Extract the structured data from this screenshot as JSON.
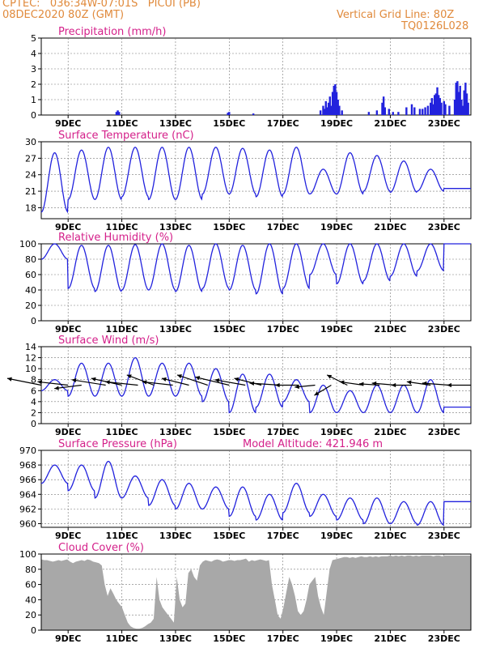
{
  "header": {
    "station_line": "CPTEC:   036:34W-07:01S   PICUI (PB)",
    "date_line": "08DEC2020 80Z (GMT)",
    "grid_line": "Vertical Grid Line: 80Z",
    "code_line": "TQ0126L028"
  },
  "colors": {
    "header_text": "#e08a3c",
    "panel_title": "#d4208a",
    "series": "#2222dd",
    "cloud_fill": "#a8a8a8",
    "grid": "#777777"
  },
  "chart_data": [
    {
      "type": "bar",
      "title": "Precipitation (mm/h)",
      "x_labels": [
        "9DEC",
        "11DEC",
        "13DEC",
        "15DEC",
        "17DEC",
        "19DEC",
        "21DEC",
        "23DEC"
      ],
      "ylim": [
        0,
        5
      ],
      "yticks": [
        0,
        1,
        2,
        3,
        4,
        5
      ],
      "grid": true,
      "bars": [
        {
          "t": 2.8,
          "v": 0.2
        },
        {
          "t": 2.85,
          "v": 0.3
        },
        {
          "t": 2.9,
          "v": 0.2
        },
        {
          "t": 6.95,
          "v": 0.15
        },
        {
          "t": 7.0,
          "v": 0.2
        },
        {
          "t": 7.9,
          "v": 0.1
        },
        {
          "t": 10.4,
          "v": 0.3
        },
        {
          "t": 10.5,
          "v": 0.6
        },
        {
          "t": 10.55,
          "v": 0.4
        },
        {
          "t": 10.6,
          "v": 0.9
        },
        {
          "t": 10.65,
          "v": 0.5
        },
        {
          "t": 10.7,
          "v": 0.8
        },
        {
          "t": 10.75,
          "v": 1.2
        },
        {
          "t": 10.8,
          "v": 0.6
        },
        {
          "t": 10.85,
          "v": 1.5
        },
        {
          "t": 10.9,
          "v": 1.9
        },
        {
          "t": 10.95,
          "v": 2.0
        },
        {
          "t": 11.0,
          "v": 1.5
        },
        {
          "t": 11.05,
          "v": 1.0
        },
        {
          "t": 11.1,
          "v": 0.6
        },
        {
          "t": 11.2,
          "v": 0.3
        },
        {
          "t": 12.2,
          "v": 0.2
        },
        {
          "t": 12.5,
          "v": 0.3
        },
        {
          "t": 12.7,
          "v": 0.8
        },
        {
          "t": 12.75,
          "v": 1.2
        },
        {
          "t": 12.8,
          "v": 0.5
        },
        {
          "t": 12.95,
          "v": 0.4
        },
        {
          "t": 13.1,
          "v": 0.2
        },
        {
          "t": 13.3,
          "v": 0.2
        },
        {
          "t": 13.6,
          "v": 0.5
        },
        {
          "t": 13.8,
          "v": 0.7
        },
        {
          "t": 13.9,
          "v": 0.5
        },
        {
          "t": 14.1,
          "v": 0.4
        },
        {
          "t": 14.2,
          "v": 0.4
        },
        {
          "t": 14.3,
          "v": 0.5
        },
        {
          "t": 14.4,
          "v": 0.6
        },
        {
          "t": 14.5,
          "v": 0.8
        },
        {
          "t": 14.55,
          "v": 1.1
        },
        {
          "t": 14.6,
          "v": 0.7
        },
        {
          "t": 14.65,
          "v": 1.3
        },
        {
          "t": 14.7,
          "v": 1.4
        },
        {
          "t": 14.75,
          "v": 1.8
        },
        {
          "t": 14.8,
          "v": 1.3
        },
        {
          "t": 14.85,
          "v": 1.1
        },
        {
          "t": 14.9,
          "v": 0.8
        },
        {
          "t": 15.0,
          "v": 0.9
        },
        {
          "t": 15.05,
          "v": 0.7
        },
        {
          "t": 15.2,
          "v": 0.6
        },
        {
          "t": 15.4,
          "v": 1.0
        },
        {
          "t": 15.45,
          "v": 2.1
        },
        {
          "t": 15.5,
          "v": 2.2
        },
        {
          "t": 15.55,
          "v": 1.5
        },
        {
          "t": 15.6,
          "v": 1.9
        },
        {
          "t": 15.65,
          "v": 1.0
        },
        {
          "t": 15.7,
          "v": 0.6
        },
        {
          "t": 15.75,
          "v": 1.6
        },
        {
          "t": 15.8,
          "v": 2.1
        },
        {
          "t": 15.85,
          "v": 1.4
        },
        {
          "t": 15.9,
          "v": 0.8
        }
      ]
    },
    {
      "type": "line",
      "title": "Surface Temperature (nC)",
      "x_labels": [
        "9DEC",
        "11DEC",
        "13DEC",
        "15DEC",
        "17DEC",
        "19DEC",
        "21DEC",
        "23DEC"
      ],
      "ylim": [
        16,
        30
      ],
      "yticks": [
        18,
        21,
        24,
        27,
        30
      ],
      "grid": true,
      "days": [
        {
          "min": 17.2,
          "max": 28.0
        },
        {
          "min": 19.5,
          "max": 28.5
        },
        {
          "min": 19.5,
          "max": 29.0
        },
        {
          "min": 20.0,
          "max": 29.0
        },
        {
          "min": 19.5,
          "max": 29.0
        },
        {
          "min": 19.5,
          "max": 29.0
        },
        {
          "min": 20.5,
          "max": 29.0
        },
        {
          "min": 20.5,
          "max": 28.8
        },
        {
          "min": 20.0,
          "max": 28.5
        },
        {
          "min": 20.5,
          "max": 29.0
        },
        {
          "min": 20.5,
          "max": 25.0
        },
        {
          "min": 20.5,
          "max": 28.0
        },
        {
          "min": 21.0,
          "max": 27.5
        },
        {
          "min": 20.8,
          "max": 26.5
        },
        {
          "min": 21.0,
          "max": 25.0
        },
        {
          "min": 21.5,
          "max": 21.5
        }
      ]
    },
    {
      "type": "line",
      "title": "Relative Humidity (%)",
      "x_labels": [
        "9DEC",
        "11DEC",
        "13DEC",
        "15DEC",
        "17DEC",
        "19DEC",
        "21DEC",
        "23DEC"
      ],
      "ylim": [
        0,
        100
      ],
      "yticks": [
        0,
        20,
        40,
        60,
        80,
        100
      ],
      "grid": true,
      "days": [
        {
          "min": 80,
          "max": 100
        },
        {
          "min": 42,
          "max": 98
        },
        {
          "min": 38,
          "max": 98
        },
        {
          "min": 40,
          "max": 99
        },
        {
          "min": 40,
          "max": 100
        },
        {
          "min": 38,
          "max": 98
        },
        {
          "min": 42,
          "max": 100
        },
        {
          "min": 40,
          "max": 98
        },
        {
          "min": 35,
          "max": 100
        },
        {
          "min": 42,
          "max": 100
        },
        {
          "min": 60,
          "max": 100
        },
        {
          "min": 48,
          "max": 100
        },
        {
          "min": 52,
          "max": 100
        },
        {
          "min": 58,
          "max": 100
        },
        {
          "min": 65,
          "max": 100
        },
        {
          "min": 100,
          "max": 100
        }
      ]
    },
    {
      "type": "line",
      "title": "Surface Wind (m/s)",
      "x_labels": [
        "9DEC",
        "11DEC",
        "13DEC",
        "15DEC",
        "17DEC",
        "19DEC",
        "21DEC",
        "23DEC"
      ],
      "ylim": [
        0,
        14
      ],
      "yticks": [
        0,
        2,
        4,
        6,
        8,
        10,
        12,
        14
      ],
      "grid": true,
      "days": [
        {
          "min": 6,
          "max": 8
        },
        {
          "min": 5,
          "max": 11
        },
        {
          "min": 5,
          "max": 11
        },
        {
          "min": 5,
          "max": 12
        },
        {
          "min": 5,
          "max": 11
        },
        {
          "min": 5,
          "max": 11
        },
        {
          "min": 4,
          "max": 10
        },
        {
          "min": 2,
          "max": 9
        },
        {
          "min": 3,
          "max": 9
        },
        {
          "min": 4,
          "max": 8
        },
        {
          "min": 2,
          "max": 7
        },
        {
          "min": 2,
          "max": 6
        },
        {
          "min": 2,
          "max": 7
        },
        {
          "min": 2,
          "max": 7
        },
        {
          "min": 2,
          "max": 8
        },
        {
          "min": 3,
          "max": 3
        }
      ],
      "wind_vectors": [
        {
          "t": 0.0,
          "u": 5.0,
          "v": 1.0
        },
        {
          "t": 1.0,
          "u": 4.5,
          "v": 0.5
        },
        {
          "t": 1.5,
          "u": 4.0,
          "v": -0.5
        },
        {
          "t": 2.4,
          "u": 5.0,
          "v": 0.8
        },
        {
          "t": 3.0,
          "u": 4.5,
          "v": 1.0
        },
        {
          "t": 3.6,
          "u": 4.8,
          "v": 0.5
        },
        {
          "t": 4.2,
          "u": 4.0,
          "v": 1.5
        },
        {
          "t": 4.9,
          "u": 4.5,
          "v": 0.5
        },
        {
          "t": 5.5,
          "u": 4.0,
          "v": 1.0
        },
        {
          "t": 6.2,
          "u": 4.5,
          "v": 1.5
        },
        {
          "t": 7.0,
          "u": 5.0,
          "v": 1.2
        },
        {
          "t": 7.6,
          "u": 4.5,
          "v": 0.8
        },
        {
          "t": 8.2,
          "u": 4.0,
          "v": 1.0
        },
        {
          "t": 8.9,
          "u": 4.5,
          "v": 0.3
        },
        {
          "t": 9.6,
          "u": 3.5,
          "v": 0.0
        },
        {
          "t": 10.2,
          "u": 3.0,
          "v": -0.3
        },
        {
          "t": 10.8,
          "u": 2.5,
          "v": -1.5
        },
        {
          "t": 11.4,
          "u": 3.0,
          "v": 1.5
        },
        {
          "t": 12.0,
          "u": 3.5,
          "v": 0.5
        },
        {
          "t": 12.6,
          "u": 3.0,
          "v": 0.2
        },
        {
          "t": 13.2,
          "u": 3.5,
          "v": 0.3
        },
        {
          "t": 13.8,
          "u": 3.0,
          "v": 0.0
        },
        {
          "t": 14.5,
          "u": 3.5,
          "v": 0.5
        },
        {
          "t": 15.2,
          "u": 4.0,
          "v": 0.3
        },
        {
          "t": 16.0,
          "u": 3.5,
          "v": 0.0
        }
      ]
    },
    {
      "type": "line",
      "title": "Surface Pressure (hPa)",
      "annotation": "Model Altitude: 421.946 m",
      "x_labels": [
        "9DEC",
        "11DEC",
        "13DEC",
        "15DEC",
        "17DEC",
        "19DEC",
        "21DEC",
        "23DEC"
      ],
      "ylim": [
        959.5,
        970
      ],
      "yticks": [
        960,
        962,
        964,
        966,
        968,
        970
      ],
      "grid": true,
      "days": [
        {
          "min": 965.5,
          "max": 968
        },
        {
          "min": 964.5,
          "max": 968
        },
        {
          "min": 963.5,
          "max": 968.5
        },
        {
          "min": 963.5,
          "max": 966.5
        },
        {
          "min": 962.5,
          "max": 966
        },
        {
          "min": 962.0,
          "max": 965.5
        },
        {
          "min": 962.0,
          "max": 965
        },
        {
          "min": 961.0,
          "max": 965
        },
        {
          "min": 960.5,
          "max": 964
        },
        {
          "min": 961.5,
          "max": 965.5
        },
        {
          "min": 961.0,
          "max": 964
        },
        {
          "min": 960.5,
          "max": 963.5
        },
        {
          "min": 960.0,
          "max": 963.5
        },
        {
          "min": 960.0,
          "max": 963
        },
        {
          "min": 959.8,
          "max": 963
        },
        {
          "min": 963.0,
          "max": 963
        }
      ]
    },
    {
      "type": "area",
      "title": "Cloud Cover (%)",
      "x_labels": [
        "9DEC",
        "11DEC",
        "13DEC",
        "15DEC",
        "17DEC",
        "19DEC",
        "21DEC",
        "23DEC"
      ],
      "ylim": [
        0,
        100
      ],
      "yticks": [
        0,
        20,
        40,
        60,
        80,
        100
      ],
      "grid": true,
      "values": [
        93,
        92,
        92,
        91,
        90,
        91,
        92,
        91,
        92,
        93,
        90,
        88,
        90,
        91,
        92,
        91,
        93,
        92,
        90,
        89,
        88,
        85,
        60,
        45,
        55,
        48,
        40,
        35,
        30,
        20,
        10,
        5,
        3,
        2,
        2,
        3,
        5,
        8,
        10,
        15,
        70,
        40,
        30,
        25,
        20,
        15,
        10,
        70,
        40,
        30,
        35,
        75,
        80,
        70,
        65,
        85,
        90,
        92,
        91,
        90,
        92,
        93,
        92,
        90,
        91,
        92,
        92,
        91,
        92,
        92,
        93,
        94,
        90,
        92,
        91,
        92,
        93,
        92,
        91,
        92,
        60,
        40,
        20,
        15,
        30,
        50,
        70,
        60,
        45,
        25,
        20,
        25,
        40,
        60,
        65,
        70,
        45,
        30,
        20,
        50,
        80,
        92,
        93,
        94,
        95,
        96,
        96,
        95,
        96,
        95,
        96,
        97,
        96,
        96,
        97,
        96,
        97,
        96,
        97,
        97,
        97,
        98,
        97,
        98,
        97,
        98,
        97,
        98,
        98,
        97,
        98,
        97,
        98,
        98,
        98,
        98,
        97,
        98,
        98,
        97,
        98,
        98,
        98,
        98,
        98,
        98,
        98,
        98,
        98,
        98
      ]
    }
  ]
}
